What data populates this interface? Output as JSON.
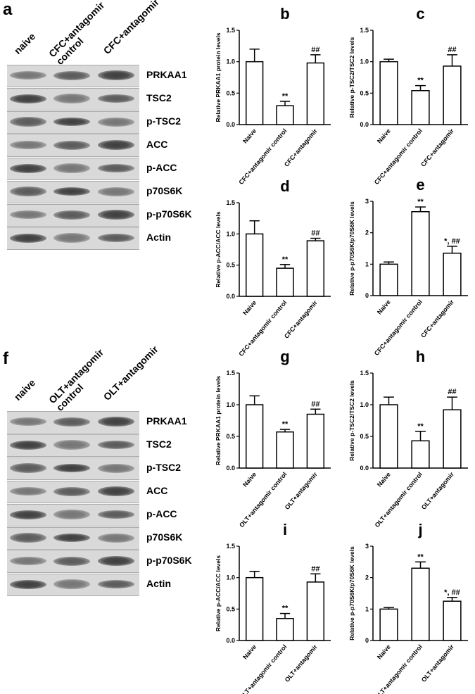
{
  "blots": [
    {
      "panel": "a",
      "lanes": [
        "naive",
        "CFC+antagomir control",
        "CFC+antagomir"
      ],
      "bands": [
        "PRKAA1",
        "TSC2",
        "p-TSC2",
        "ACC",
        "p-ACC",
        "p70S6K",
        "p-p70S6K",
        "Actin"
      ]
    },
    {
      "panel": "f",
      "lanes": [
        "naive",
        "OLT+antagomir control",
        "OLT+antagomir"
      ],
      "bands": [
        "PRKAA1",
        "TSC2",
        "p-TSC2",
        "ACC",
        "p-ACC",
        "p70S6K",
        "p-p70S6K",
        "Actin"
      ]
    }
  ],
  "chart_data": [
    {
      "type": "bar",
      "panel": "b",
      "ylabel": "Relative PRKAA1 protein levels",
      "categories": [
        "Naive",
        "CFC+antagomir control",
        "CFC+antagomir"
      ],
      "values": [
        1.0,
        0.3,
        0.98
      ],
      "errors": [
        0.2,
        0.07,
        0.13
      ],
      "annotations": [
        null,
        "**",
        "##"
      ],
      "color": "#ffffff",
      "ylim": [
        0,
        1.5
      ],
      "yticks": [
        {
          "value": 0,
          "label": "0.0"
        },
        0.5,
        {
          "value": 1,
          "label": "1.0"
        },
        1.5
      ]
    },
    {
      "type": "bar",
      "panel": "c",
      "ylabel": "Relative p-TSC2/TSC2  levels",
      "categories": [
        "Naive",
        "CFC+antagomir control",
        "CFC+antagomir"
      ],
      "values": [
        1.0,
        0.54,
        0.93
      ],
      "errors": [
        0.04,
        0.08,
        0.18
      ],
      "annotations": [
        null,
        "**",
        "##"
      ],
      "color": "#ffffff",
      "ylim": [
        0,
        1.5
      ],
      "yticks": [
        {
          "value": 0,
          "label": "0.0"
        },
        0.5,
        {
          "value": 1,
          "label": "1.0"
        },
        1.5
      ]
    },
    {
      "type": "bar",
      "panel": "d",
      "ylabel": "Relative p-ACC/ACC  levels",
      "categories": [
        "Naive",
        "CFC+antagomir control",
        "CFC+antagomir"
      ],
      "values": [
        1.0,
        0.45,
        0.89
      ],
      "errors": [
        0.21,
        0.06,
        0.04
      ],
      "annotations": [
        null,
        "**",
        "##"
      ],
      "color": "#ffffff",
      "ylim": [
        0,
        1.5
      ],
      "yticks": [
        {
          "value": 0,
          "label": "0.0"
        },
        0.5,
        {
          "value": 1,
          "label": "1.0"
        },
        1.5
      ]
    },
    {
      "type": "bar",
      "panel": "e",
      "ylabel": "Relative p-p70S6K/p70S6K  levels",
      "categories": [
        "Naive",
        "CFC+antagomir control",
        "CFC+antagomir"
      ],
      "values": [
        1.0,
        2.67,
        1.35
      ],
      "errors": [
        0.07,
        0.15,
        0.22
      ],
      "annotations": [
        null,
        "**",
        "*, ##"
      ],
      "color": "#ffffff",
      "ylim": [
        0,
        3
      ],
      "yticks": [
        0,
        1,
        2,
        3
      ]
    },
    {
      "type": "bar",
      "panel": "g",
      "ylabel": "Relative PRKAA1 protein levels",
      "categories": [
        "Naive",
        "OLT+antagomir control",
        "OLT+antagomir"
      ],
      "values": [
        1.0,
        0.57,
        0.85
      ],
      "errors": [
        0.14,
        0.04,
        0.08
      ],
      "annotations": [
        null,
        "**",
        "##"
      ],
      "color": "#ffffff",
      "ylim": [
        0,
        1.5
      ],
      "yticks": [
        {
          "value": 0,
          "label": "0.0"
        },
        0.5,
        {
          "value": 1,
          "label": "1.0"
        },
        1.5
      ]
    },
    {
      "type": "bar",
      "panel": "h",
      "ylabel": "Relative p-TSC2/TSC2  levels",
      "categories": [
        "Naive",
        "OLT+antagomir control",
        "OLT+antagomir"
      ],
      "values": [
        1.0,
        0.43,
        0.92
      ],
      "errors": [
        0.12,
        0.15,
        0.2
      ],
      "annotations": [
        null,
        "**",
        "##"
      ],
      "color": "#ffffff",
      "ylim": [
        0,
        1.5
      ],
      "yticks": [
        {
          "value": 0,
          "label": "0.0"
        },
        0.5,
        {
          "value": 1,
          "label": "1.0"
        },
        1.5
      ]
    },
    {
      "type": "bar",
      "panel": "i",
      "ylabel": "Relative p-ACC/ACC  levels",
      "categories": [
        "Naive",
        "OLT+antagomir control",
        "OLT+antagomir"
      ],
      "values": [
        1.0,
        0.35,
        0.93
      ],
      "errors": [
        0.1,
        0.08,
        0.13
      ],
      "annotations": [
        null,
        "**",
        "##"
      ],
      "color": "#ffffff",
      "ylim": [
        0,
        1.5
      ],
      "yticks": [
        {
          "value": 0,
          "label": "0.0"
        },
        0.5,
        {
          "value": 1,
          "label": "1.0"
        },
        1.5
      ]
    },
    {
      "type": "bar",
      "panel": "j",
      "ylabel": "Relative p-p70S6K/p70S6K  levels",
      "categories": [
        "Naive",
        "OLT+antagomir control",
        "OLT+antagomir"
      ],
      "values": [
        1.0,
        2.3,
        1.25
      ],
      "errors": [
        0.05,
        0.2,
        0.12
      ],
      "annotations": [
        null,
        "**",
        "*, ##"
      ],
      "color": "#ffffff",
      "ylim": [
        0,
        3
      ],
      "yticks": [
        0,
        1,
        2,
        3
      ]
    }
  ]
}
